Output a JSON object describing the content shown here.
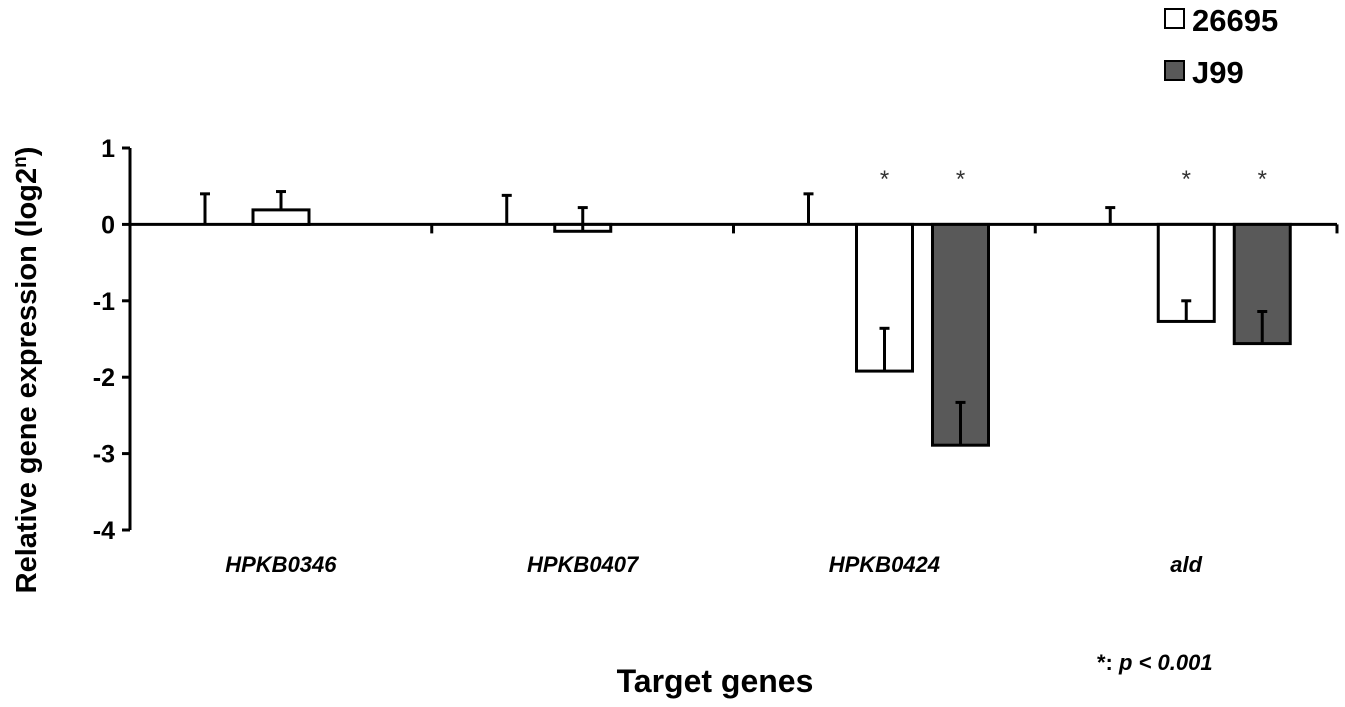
{
  "chart_data": {
    "type": "bar",
    "title": "",
    "xlabel": "Target genes",
    "ylabel_main": "Relative gene expression (log2",
    "ylabel_sup": "n",
    "ylabel_close": ")",
    "ylim": [
      -4,
      1
    ],
    "yticks": [
      "1",
      "0",
      "-1",
      "-2",
      "-3",
      "-4"
    ],
    "grid": false,
    "legend_position": "top-right",
    "categories": [
      "HPKB0346",
      "HPKB0407",
      "HPKB0424",
      "ald"
    ],
    "series": [
      {
        "values": [
          0,
          0,
          0,
          0
        ],
        "errors": [
          0.4,
          0.38,
          0.4,
          0.22
        ],
        "color": "#ffffff",
        "significant": [
          false,
          false,
          false,
          false
        ]
      },
      {
        "name": "26695",
        "values": [
          0.19,
          -0.09,
          -1.92,
          -1.27
        ],
        "errors": [
          0.24,
          0.31,
          0.56,
          0.27
        ],
        "color": "#ffffff",
        "significant": [
          false,
          false,
          true,
          true
        ]
      },
      {
        "name": "J99",
        "values": [
          0,
          0,
          -2.89,
          -1.56
        ],
        "errors": [
          0,
          0,
          0.56,
          0.42
        ],
        "color": "#595959",
        "significant": [
          false,
          false,
          true,
          true
        ]
      }
    ],
    "significance_marker": "*",
    "note_prefix": "*: ",
    "note_text": "p < 0.001"
  }
}
